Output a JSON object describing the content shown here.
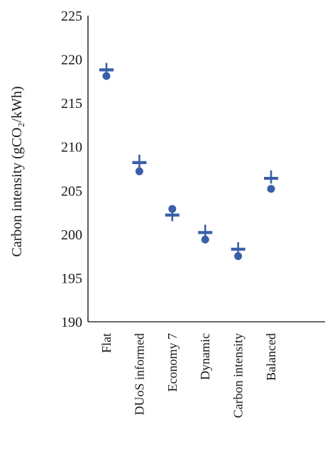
{
  "chart_data": {
    "type": "scatter",
    "title": "",
    "xlabel": "",
    "ylabel": "Carbon intensity (gCO₂/kWh)",
    "ylim": [
      190,
      225
    ],
    "yticks": [
      190,
      195,
      200,
      205,
      210,
      215,
      220,
      225
    ],
    "grid": false,
    "categories": [
      "Flat",
      "DUoS informed",
      "Economy 7",
      "Dynamic",
      "Carbon intensity",
      "Balanced"
    ],
    "series": [
      {
        "marker": "dash",
        "values": [
          218.8,
          208.2,
          202.2,
          200.2,
          198.3,
          206.4
        ]
      },
      {
        "marker": "circle",
        "values": [
          218.1,
          207.2,
          202.9,
          199.4,
          197.5,
          205.2
        ]
      }
    ],
    "error_bars": [
      [
        218.3,
        219.6
      ],
      [
        207.6,
        209.1
      ],
      [
        201.5,
        203.3
      ],
      [
        199.7,
        201.1
      ],
      [
        197.8,
        199.1
      ],
      [
        205.8,
        207.3
      ]
    ],
    "color": "#3a5ea8"
  }
}
